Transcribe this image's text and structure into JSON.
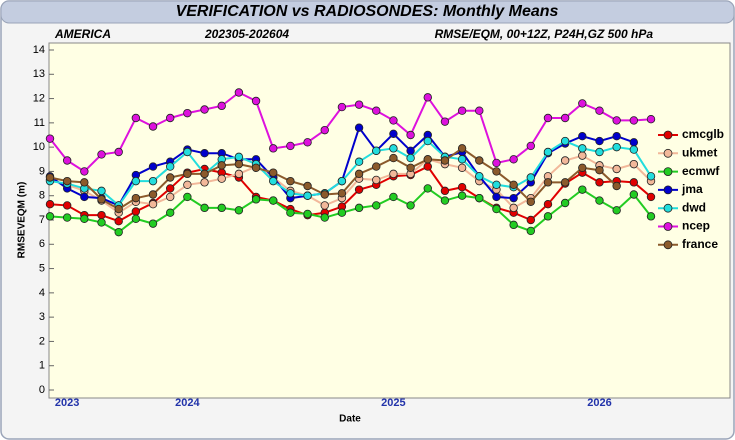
{
  "chart_data": {
    "type": "line",
    "title": "VERIFICATION vs RADIOSONDES: Monthly Means",
    "annotations": [
      "AMERICA",
      "202305-202604",
      "RMSE/EQM, 00+12Z, P24H,GZ 500 hPa"
    ],
    "ylabel": "RMSEVEQM (m)",
    "xlabel": "Date",
    "categories": [
      null,
      "2023",
      null,
      null,
      null,
      null,
      null,
      null,
      "2024",
      null,
      null,
      null,
      null,
      null,
      null,
      null,
      null,
      null,
      null,
      null,
      "2025",
      null,
      null,
      null,
      null,
      null,
      null,
      null,
      null,
      null,
      null,
      null,
      "2026",
      null,
      null,
      null
    ],
    "ylim": [
      0,
      14
    ],
    "yticks": [
      0,
      1,
      2,
      3,
      4,
      5,
      6,
      7,
      8,
      9,
      10,
      11,
      12,
      13,
      14
    ],
    "legend": "right",
    "series": [
      {
        "name": "cmcglb",
        "color": "#e00000",
        "values": [
          7.65,
          7.6,
          7.2,
          7.2,
          6.95,
          7.35,
          7.7,
          8.3,
          8.95,
          9.1,
          8.95,
          8.75,
          7.95,
          7.8,
          7.45,
          7.2,
          7.3,
          7.55,
          8.25,
          8.45,
          8.8,
          8.85,
          9.2,
          8.2,
          8.35,
          7.9,
          7.5,
          7.3,
          7.0,
          7.65,
          8.5,
          8.95,
          8.55,
          8.6,
          8.55,
          7.95
        ]
      },
      {
        "name": "ukmet",
        "color": "#f2b89a",
        "values": [
          8.65,
          8.45,
          8.2,
          7.8,
          7.3,
          7.75,
          7.65,
          7.95,
          8.45,
          8.55,
          8.7,
          8.9,
          9.2,
          8.75,
          8.2,
          8.0,
          7.6,
          7.9,
          8.7,
          8.65,
          8.9,
          8.9,
          9.5,
          9.3,
          9.15,
          8.6,
          8.25,
          7.5,
          7.9,
          8.8,
          9.45,
          9.65,
          9.25,
          9.1,
          9.3,
          8.6
        ]
      },
      {
        "name": "ecmwf",
        "color": "#22cc22",
        "values": [
          7.15,
          7.1,
          7.05,
          6.9,
          6.5,
          7.05,
          6.85,
          7.3,
          7.95,
          7.5,
          7.5,
          7.4,
          7.85,
          7.8,
          7.3,
          7.25,
          7.1,
          7.3,
          7.5,
          7.6,
          7.95,
          7.6,
          8.3,
          7.8,
          8.0,
          7.9,
          7.45,
          6.8,
          6.55,
          7.15,
          7.7,
          8.25,
          7.8,
          7.4,
          8.05,
          7.15
        ]
      },
      {
        "name": "jma",
        "color": "#0000cc",
        "values": [
          8.8,
          8.3,
          7.95,
          7.9,
          7.6,
          8.85,
          9.2,
          9.4,
          9.9,
          9.75,
          9.75,
          9.5,
          9.5,
          8.75,
          7.9,
          8.0,
          8.1,
          8.6,
          10.8,
          9.85,
          10.55,
          9.85,
          10.5,
          9.6,
          9.8,
          8.8,
          7.95,
          7.9,
          8.55,
          9.75,
          10.15,
          10.45,
          10.25,
          10.45,
          10.2,
          null
        ]
      },
      {
        "name": "dwd",
        "color": "#22dddd",
        "values": [
          8.6,
          8.5,
          8.3,
          8.2,
          7.6,
          8.6,
          8.6,
          9.2,
          9.8,
          8.9,
          9.5,
          9.6,
          9.3,
          8.6,
          8.1,
          8.0,
          8.1,
          8.6,
          9.4,
          9.85,
          9.95,
          9.55,
          10.25,
          9.6,
          9.5,
          8.8,
          8.45,
          8.35,
          8.75,
          9.8,
          10.25,
          9.95,
          9.8,
          10.0,
          9.9,
          8.8
        ]
      },
      {
        "name": "ncep",
        "color": "#dd11dd",
        "values": [
          10.35,
          9.45,
          9.0,
          9.7,
          9.8,
          11.2,
          10.85,
          11.2,
          11.4,
          11.55,
          11.7,
          12.25,
          11.9,
          9.95,
          10.05,
          10.2,
          10.7,
          11.65,
          11.75,
          11.5,
          11.1,
          10.5,
          12.05,
          11.05,
          11.5,
          11.5,
          9.35,
          9.5,
          10.05,
          11.2,
          11.2,
          11.8,
          11.5,
          11.1,
          11.1,
          11.15
        ]
      },
      {
        "name": "france",
        "color": "#8b5a2b",
        "values": [
          8.75,
          8.6,
          8.55,
          7.85,
          7.45,
          7.9,
          8.05,
          8.75,
          8.9,
          8.9,
          9.25,
          9.3,
          9.15,
          8.95,
          8.6,
          8.4,
          8.05,
          8.1,
          8.9,
          9.2,
          9.55,
          9.15,
          9.5,
          9.45,
          9.95,
          9.45,
          9.0,
          8.45,
          7.75,
          8.55,
          8.55,
          9.15,
          9.05,
          8.4,
          null,
          null
        ]
      }
    ]
  }
}
